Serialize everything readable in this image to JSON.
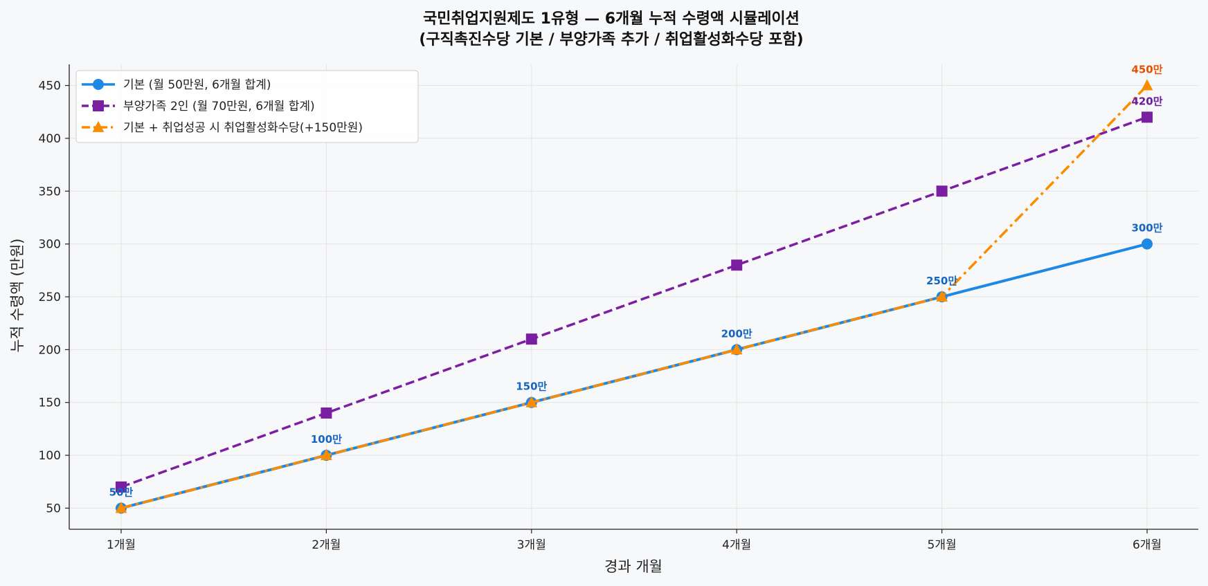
{
  "chart_data": {
    "type": "line",
    "title": "국민취업지원제도 1유형 — 6개월 누적 수령액 시뮬레이션",
    "subtitle": "(구직촉진수당 기본 / 부양가족 추가 / 취업활성화수당 포함)",
    "xlabel": "경과 개월",
    "ylabel": "누적 수령액 (만원)",
    "categories": [
      "1개월",
      "2개월",
      "3개월",
      "4개월",
      "5개월",
      "6개월"
    ],
    "ylim": [
      30,
      470
    ],
    "yticks": [
      50,
      100,
      150,
      200,
      250,
      300,
      350,
      400,
      450
    ],
    "grid": true,
    "legend_position": "top-left",
    "series": [
      {
        "name": "기본 (월 50만원, 6개월 합계)",
        "values": [
          50,
          100,
          150,
          200,
          250,
          300
        ],
        "color": "#1e88e5",
        "marker": "circle",
        "linestyle": "solid",
        "labels": [
          "50만",
          "100만",
          "150만",
          "200만",
          "250만",
          "300만"
        ],
        "label_color": "#1565c0"
      },
      {
        "name": "부양가족 2인 (월 70만원, 6개월 합계)",
        "values": [
          70,
          140,
          210,
          280,
          350,
          420
        ],
        "color": "#7b1fa2",
        "marker": "square",
        "linestyle": "dashed",
        "labels": [
          "",
          "",
          "",
          "",
          "",
          "420만"
        ],
        "label_color": "#6a1b9a"
      },
      {
        "name": "기본 + 취업성공 시 취업활성화수당(+150만원)",
        "values": [
          50,
          100,
          150,
          200,
          250,
          450
        ],
        "color": "#fb8c00",
        "marker": "triangle",
        "linestyle": "dashdot",
        "labels": [
          "",
          "",
          "",
          "",
          "",
          "450만"
        ],
        "label_color": "#e65100"
      }
    ]
  }
}
